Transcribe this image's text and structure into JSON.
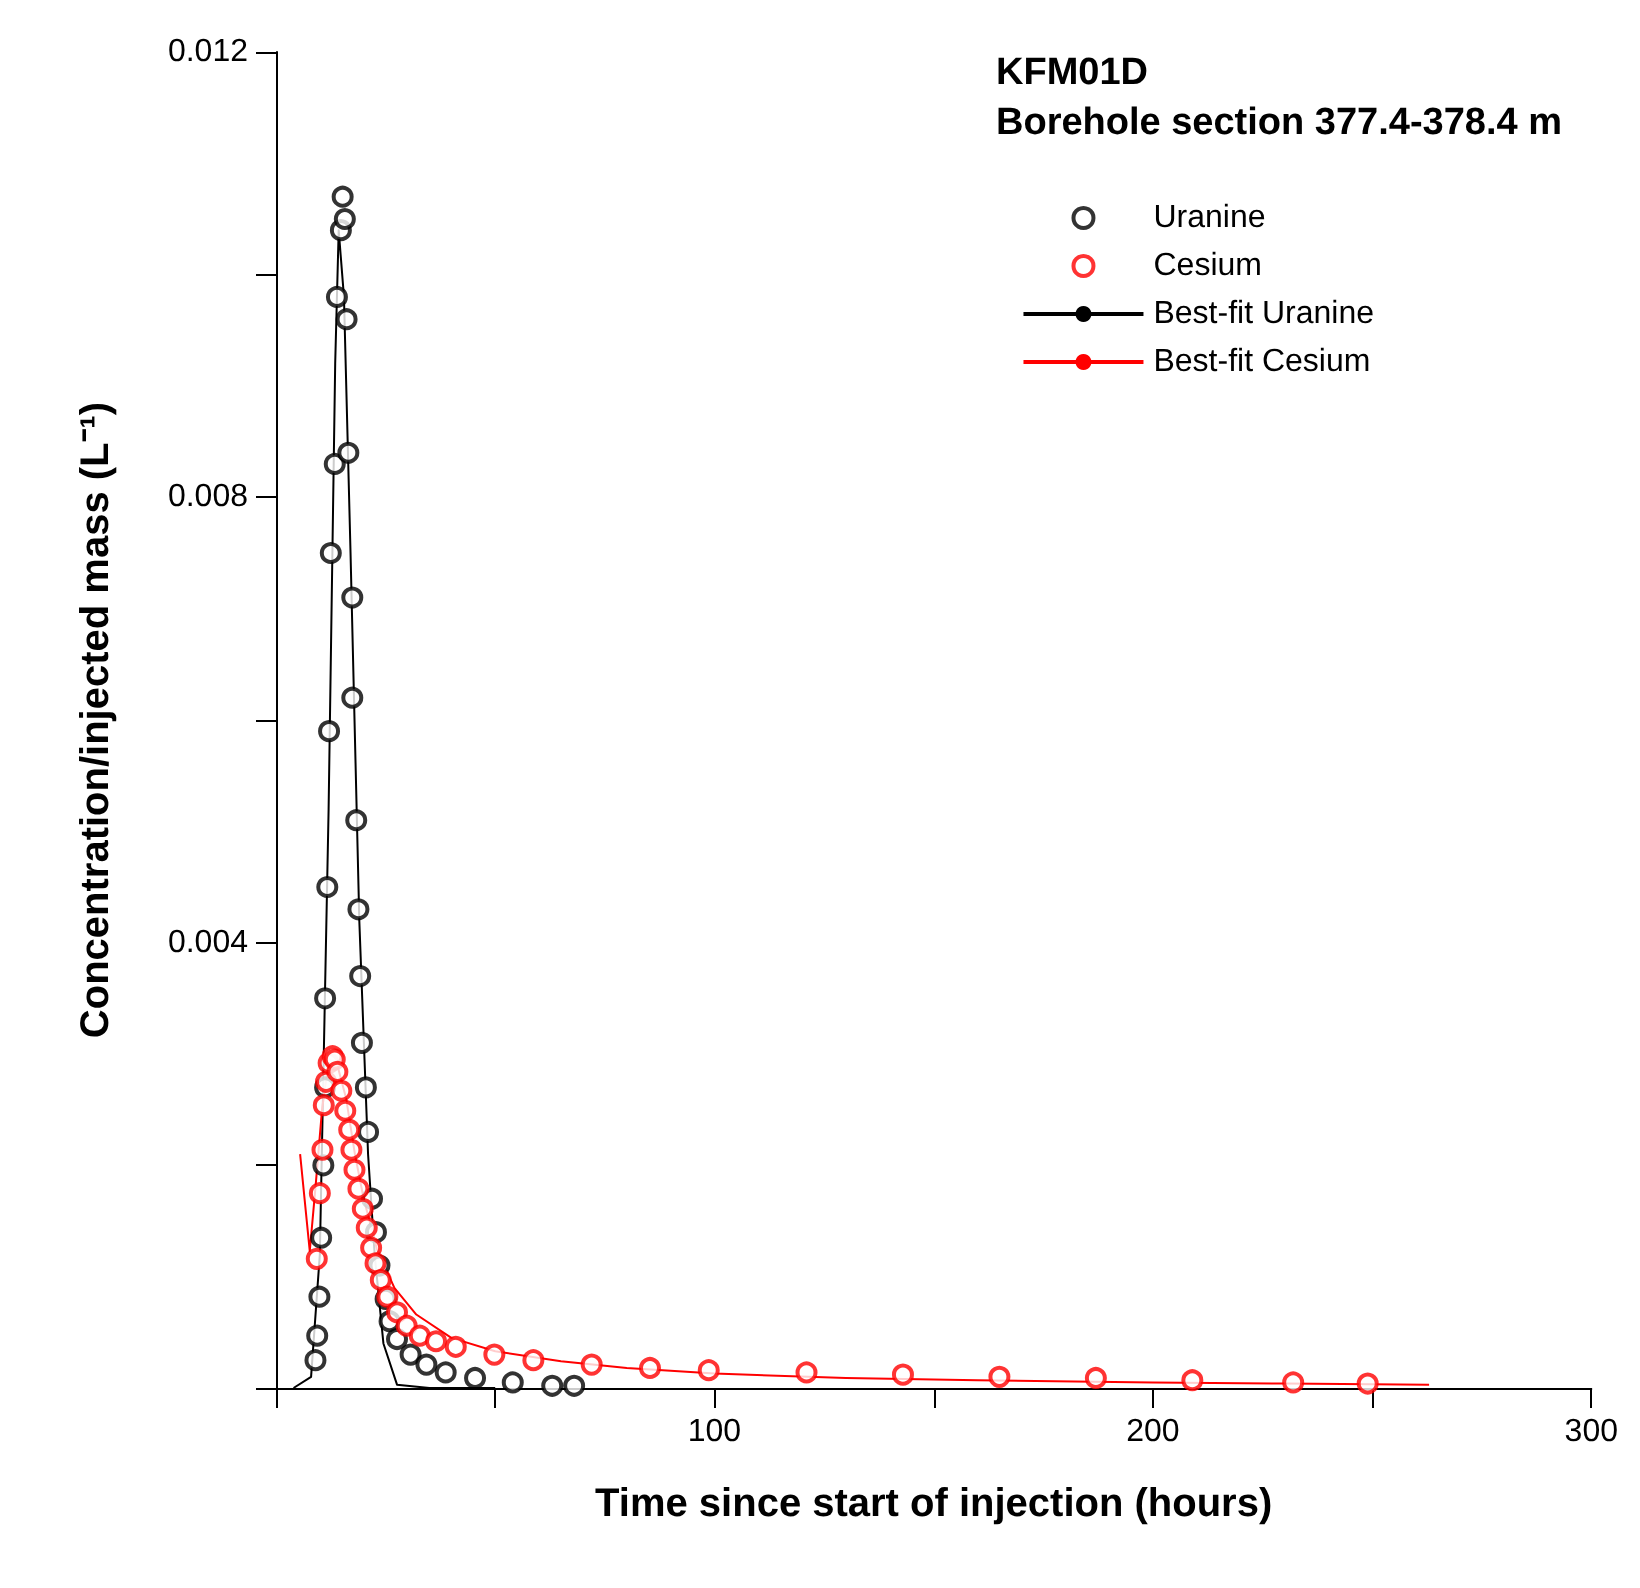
{
  "chart_data": {
    "type": "scatter",
    "title": "KFM01D",
    "subtitle": "Borehole section 377.4-378.4 m",
    "xlabel": "Time since start of injection (hours)",
    "ylabel": "Concentration/injected mass (L⁻¹)",
    "xlim": [
      0,
      300
    ],
    "xticks": [
      {
        "value": 0,
        "label": null
      },
      {
        "value": 50,
        "label": null
      },
      100,
      {
        "value": 150,
        "label": null
      },
      200,
      {
        "value": 250,
        "label": null
      },
      300
    ],
    "ylim": [
      0,
      0.012
    ],
    "yticks": [
      {
        "value": 0,
        "label": null
      },
      {
        "value": 0.002,
        "label": null
      },
      0.004,
      {
        "value": 0.006,
        "label": null
      },
      0.008,
      {
        "value": 0.01,
        "label": null
      },
      0.012
    ],
    "grid": false,
    "legend": "top right",
    "marker": "circle",
    "series": [
      {
        "name": "Uranine",
        "color": "#000000",
        "x": [
          9.0,
          9.4,
          9.9,
          10.3,
          10.8,
          11.2,
          11.2,
          11.7,
          12.1,
          12.5,
          13.4,
          13.9,
          14.8,
          15.2,
          15.7,
          16.1,
          16.5,
          17.4,
          17.4,
          18.3,
          18.8,
          19.2,
          19.6,
          20.5,
          21.0,
          21.9,
          22.8,
          23.6,
          25.0,
          25.9,
          27.6,
          30.7,
          34.3,
          38.7,
          45.4,
          54,
          63,
          68
        ],
        "values": [
          0.00025,
          0.00047,
          0.00082,
          0.00135,
          0.002,
          0.0027,
          0.0035,
          0.0045,
          0.0059,
          0.0075,
          0.0083,
          0.0098,
          0.0104,
          0.0107,
          0.0105,
          0.0096,
          0.0084,
          0.0071,
          0.0062,
          0.0051,
          0.0043,
          0.0037,
          0.0031,
          0.0027,
          0.0023,
          0.0017,
          0.0014,
          0.0011,
          0.0008,
          0.0006,
          0.00044,
          0.0003,
          0.00021,
          0.00014,
          9e-05,
          5e-05,
          2e-05,
          2e-05
        ]
      },
      {
        "name": "Cesium",
        "color": "#ff0000",
        "x": [
          9.3,
          10.0,
          10.6,
          10.9,
          11.4,
          12.0,
          12.9,
          13.4,
          14.0,
          14.9,
          15.8,
          16.7,
          17.2,
          17.9,
          18.8,
          19.8,
          20.7,
          21.7,
          22.7,
          23.9,
          25.4,
          27.6,
          29.8,
          32.8,
          36.5,
          41,
          49.8,
          58.7,
          72,
          85.3,
          98.7,
          121,
          143,
          165,
          187,
          209,
          232,
          249
        ],
        "values": [
          0.00116,
          0.00175,
          0.00214,
          0.00254,
          0.00275,
          0.00292,
          0.00298,
          0.00295,
          0.00284,
          0.00267,
          0.00249,
          0.00232,
          0.00214,
          0.00196,
          0.00179,
          0.00161,
          0.00144,
          0.00126,
          0.00112,
          0.00097,
          0.00082,
          0.00068,
          0.00056,
          0.00047,
          0.00042,
          0.00037,
          0.0003,
          0.00025,
          0.00021,
          0.00018,
          0.00016,
          0.00014,
          0.00012,
          0.0001,
          9e-05,
          7e-05,
          5e-05,
          4e-05
        ]
      },
      {
        "name": "Best-fit Uranine",
        "type": "line",
        "color": "#000000",
        "marker": "none",
        "line_style": "solid",
        "x": [
          4,
          8,
          10,
          12,
          13.5,
          14.3,
          15.5,
          17,
          19,
          21,
          22.5,
          24.5,
          27.6,
          35,
          50
        ],
        "values": [
          0,
          0.0001,
          0.0012,
          0.0052,
          0.0092,
          0.0104,
          0.0098,
          0.0075,
          0.0042,
          0.0021,
          0.0012,
          0.0004,
          3e-05,
          0,
          0
        ]
      },
      {
        "name": "Best-fit Cesium",
        "type": "line",
        "color": "#ff0000",
        "marker": "none",
        "line_style": "solid",
        "x": [
          5.5,
          7.7,
          9,
          10.5,
          12.1,
          14,
          16,
          18,
          20,
          23,
          27,
          32,
          40,
          50,
          65,
          80,
          100,
          130,
          160,
          200,
          230,
          263
        ],
        "values": [
          0.0021,
          0.00123,
          0.0018,
          0.0025,
          0.00296,
          0.0029,
          0.0026,
          0.0021,
          0.0017,
          0.00125,
          0.0009,
          0.00066,
          0.00045,
          0.00033,
          0.00024,
          0.00018,
          0.00013,
          9e-05,
          7e-05,
          5e-05,
          4e-05,
          3e-05
        ]
      }
    ]
  }
}
